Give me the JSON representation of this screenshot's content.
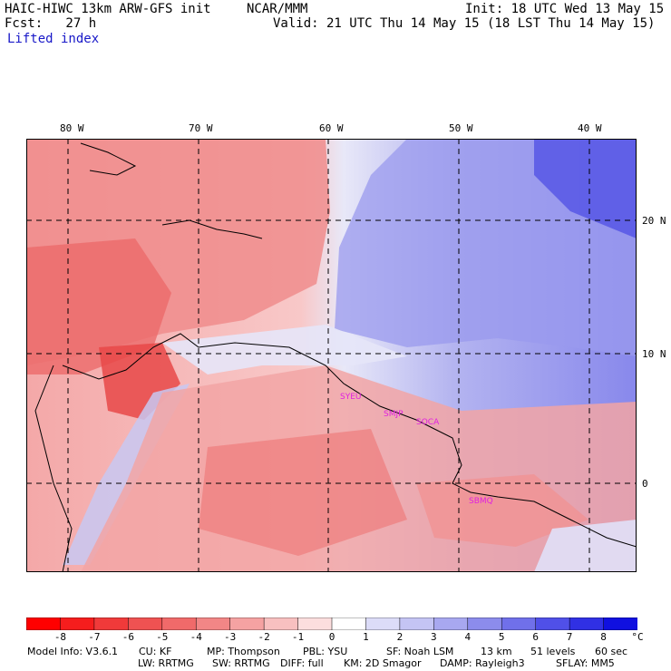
{
  "header": {
    "model": "HAIC-HIWC 13km ARW-GFS init",
    "org": "NCAR/MMM",
    "init": "Init: 18 UTC Wed 13 May 15",
    "fcst": "Fcst:   27 h",
    "valid": "Valid: 21 UTC Thu 14 May 15 (18 LST Thu 14 May 15)",
    "field": "Lifted index"
  },
  "map": {
    "lon_labels": [
      "80 W",
      "70 W",
      "60 W",
      "50 W",
      "40 W"
    ],
    "lat_labels": [
      "20 N",
      "10 N",
      "0"
    ],
    "stations": [
      "SYEU",
      "SMJP",
      "SOCA",
      "SBMQ"
    ],
    "colors": {
      "neg_dark": "#ee1c1c",
      "neg_light": "#f8c4c4",
      "pos_light": "#d4d4f6",
      "pos_dark": "#1818e0",
      "station": "#e020e0"
    }
  },
  "colorbar": {
    "labels": [
      "-8",
      "-7",
      "-6",
      "-5",
      "-4",
      "-3",
      "-2",
      "-1",
      "0",
      "1",
      "2",
      "3",
      "4",
      "5",
      "6",
      "7",
      "8"
    ],
    "unit": "°C",
    "colors": [
      "#ff0000",
      "#f51d1d",
      "#f03a3a",
      "#ef5252",
      "#f06a6a",
      "#f28686",
      "#f5a2a2",
      "#f8c0c0",
      "#fcdede",
      "#ffffff",
      "#dcdcf8",
      "#c4c4f4",
      "#a8a8f0",
      "#8c8cec",
      "#7070ea",
      "#5050e8",
      "#3030e4",
      "#1010e0"
    ]
  },
  "footer": {
    "line1": [
      "Model Info: V3.6.1",
      "CU: KF",
      "MP: Thompson",
      "PBL: YSU",
      "SF: Noah LSM",
      "13 km",
      "51 levels",
      "60 sec"
    ],
    "line2": [
      "LW: RRTMG",
      "SW: RRTMG",
      "DIFF: full",
      "KM: 2D Smagor",
      "DAMP: Rayleigh3",
      "SFLAY: MM5"
    ]
  }
}
